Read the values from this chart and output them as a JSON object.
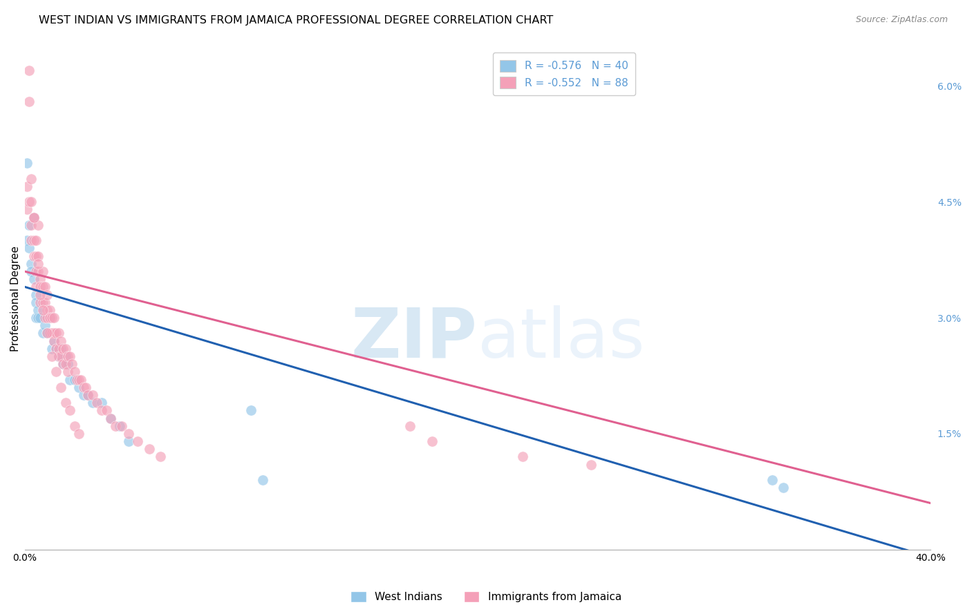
{
  "title": "WEST INDIAN VS IMMIGRANTS FROM JAMAICA PROFESSIONAL DEGREE CORRELATION CHART",
  "source": "Source: ZipAtlas.com",
  "ylabel": "Professional Degree",
  "right_yticks": [
    "6.0%",
    "4.5%",
    "3.0%",
    "1.5%"
  ],
  "right_ytick_vals": [
    0.06,
    0.045,
    0.03,
    0.015
  ],
  "xlim": [
    0.0,
    0.4
  ],
  "ylim": [
    0.0,
    0.065
  ],
  "blue_color": "#93c6e8",
  "pink_color": "#f4a0b8",
  "blue_line_color": "#2060b0",
  "pink_line_color": "#e06090",
  "legend_R_blue": "R = -0.576",
  "legend_N_blue": "N = 40",
  "legend_R_pink": "R = -0.552",
  "legend_N_pink": "N = 88",
  "legend_label_blue": "West Indians",
  "legend_label_pink": "Immigrants from Jamaica",
  "watermark_zip": "ZIP",
  "watermark_atlas": "atlas",
  "blue_scatter_x": [
    0.001,
    0.004,
    0.001,
    0.002,
    0.002,
    0.003,
    0.003,
    0.004,
    0.005,
    0.005,
    0.005,
    0.006,
    0.006,
    0.007,
    0.008,
    0.009,
    0.01,
    0.011,
    0.012,
    0.013,
    0.014,
    0.015,
    0.016,
    0.017,
    0.018,
    0.019,
    0.02,
    0.022,
    0.024,
    0.026,
    0.028,
    0.03,
    0.034,
    0.038,
    0.042,
    0.046,
    0.1,
    0.105,
    0.33,
    0.335
  ],
  "blue_scatter_y": [
    0.05,
    0.043,
    0.04,
    0.042,
    0.039,
    0.037,
    0.036,
    0.035,
    0.033,
    0.032,
    0.03,
    0.031,
    0.03,
    0.03,
    0.028,
    0.029,
    0.028,
    0.03,
    0.026,
    0.027,
    0.026,
    0.025,
    0.026,
    0.024,
    0.025,
    0.024,
    0.022,
    0.022,
    0.021,
    0.02,
    0.02,
    0.019,
    0.019,
    0.017,
    0.016,
    0.014,
    0.018,
    0.009,
    0.009,
    0.008
  ],
  "pink_scatter_x": [
    0.001,
    0.001,
    0.002,
    0.002,
    0.002,
    0.003,
    0.003,
    0.003,
    0.004,
    0.004,
    0.004,
    0.005,
    0.005,
    0.005,
    0.006,
    0.006,
    0.006,
    0.007,
    0.007,
    0.007,
    0.008,
    0.008,
    0.008,
    0.009,
    0.009,
    0.009,
    0.01,
    0.01,
    0.01,
    0.011,
    0.011,
    0.011,
    0.012,
    0.012,
    0.013,
    0.013,
    0.013,
    0.014,
    0.014,
    0.015,
    0.015,
    0.015,
    0.016,
    0.016,
    0.017,
    0.017,
    0.018,
    0.018,
    0.019,
    0.019,
    0.02,
    0.021,
    0.022,
    0.023,
    0.024,
    0.025,
    0.026,
    0.027,
    0.028,
    0.03,
    0.032,
    0.034,
    0.036,
    0.038,
    0.04,
    0.043,
    0.046,
    0.05,
    0.055,
    0.06,
    0.003,
    0.004,
    0.005,
    0.006,
    0.007,
    0.008,
    0.01,
    0.012,
    0.014,
    0.016,
    0.018,
    0.02,
    0.022,
    0.024,
    0.17,
    0.18,
    0.22,
    0.25
  ],
  "pink_scatter_y": [
    0.047,
    0.044,
    0.062,
    0.058,
    0.045,
    0.045,
    0.042,
    0.04,
    0.043,
    0.04,
    0.038,
    0.038,
    0.036,
    0.034,
    0.042,
    0.038,
    0.036,
    0.035,
    0.034,
    0.032,
    0.036,
    0.034,
    0.032,
    0.034,
    0.032,
    0.03,
    0.033,
    0.031,
    0.03,
    0.031,
    0.03,
    0.028,
    0.03,
    0.028,
    0.03,
    0.028,
    0.027,
    0.028,
    0.026,
    0.028,
    0.026,
    0.025,
    0.027,
    0.025,
    0.026,
    0.024,
    0.026,
    0.024,
    0.025,
    0.023,
    0.025,
    0.024,
    0.023,
    0.022,
    0.022,
    0.022,
    0.021,
    0.021,
    0.02,
    0.02,
    0.019,
    0.018,
    0.018,
    0.017,
    0.016,
    0.016,
    0.015,
    0.014,
    0.013,
    0.012,
    0.048,
    0.043,
    0.04,
    0.037,
    0.033,
    0.031,
    0.028,
    0.025,
    0.023,
    0.021,
    0.019,
    0.018,
    0.016,
    0.015,
    0.016,
    0.014,
    0.012,
    0.011
  ],
  "blue_line_x": [
    0.0,
    0.4
  ],
  "blue_line_y": [
    0.034,
    -0.001
  ],
  "pink_line_x": [
    0.0,
    0.4
  ],
  "pink_line_y": [
    0.036,
    0.006
  ],
  "grid_color": "#cccccc",
  "background_color": "#ffffff",
  "right_axis_color": "#5b9bd5",
  "title_fontsize": 11.5,
  "axis_label_fontsize": 11,
  "tick_fontsize": 10
}
